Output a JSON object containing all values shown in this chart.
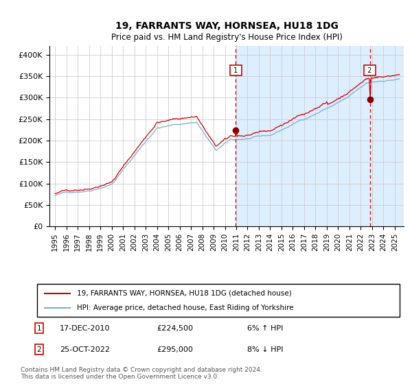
{
  "title": "19, FARRANTS WAY, HORNSEA, HU18 1DG",
  "subtitle": "Price paid vs. HM Land Registry's House Price Index (HPI)",
  "legend_line1": "19, FARRANTS WAY, HORNSEA, HU18 1DG (detached house)",
  "legend_line2": "HPI: Average price, detached house, East Riding of Yorkshire",
  "annotation1_label": "1",
  "annotation1_date": "17-DEC-2010",
  "annotation1_price": "£224,500",
  "annotation1_pct": "6% ↑ HPI",
  "annotation2_label": "2",
  "annotation2_date": "25-OCT-2022",
  "annotation2_price": "£295,000",
  "annotation2_pct": "8% ↓ HPI",
  "footer": "Contains HM Land Registry data © Crown copyright and database right 2024.\nThis data is licensed under the Open Government Licence v3.0.",
  "sale1_year": 2010.96,
  "sale1_value": 224500,
  "sale2_year": 2022.81,
  "sale2_value": 295000,
  "hpi_color": "#7aadd4",
  "property_color": "#cc0000",
  "bg_color": "#ddeeff",
  "annotation_vline_color": "#cc0000",
  "grid_color": "#cccccc",
  "ylim": [
    0,
    420000
  ],
  "yticks": [
    0,
    50000,
    100000,
    150000,
    200000,
    250000,
    300000,
    350000,
    400000
  ],
  "ytick_labels": [
    "£0",
    "£50K",
    "£100K",
    "£150K",
    "£200K",
    "£250K",
    "£300K",
    "£350K",
    "£400K"
  ]
}
